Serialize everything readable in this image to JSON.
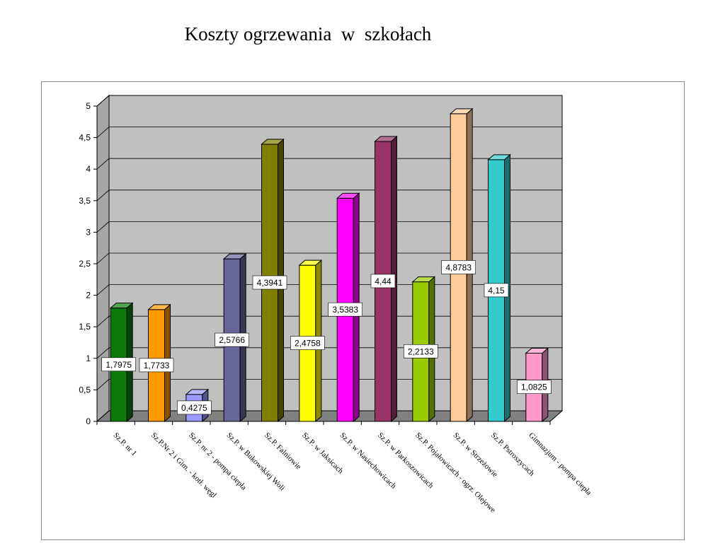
{
  "title": "Koszty ogrzewania  w  szkołach",
  "chart_data": {
    "type": "bar",
    "title": "Koszty ogrzewania  w  szkołach",
    "categories": [
      "Sz.P. nr 1",
      "Sz.P.Nr 2 i Gim. - kotł. węgl",
      "Sz.P. nr 2 - pompa ciepła",
      "Sz.P. w Bukowskiej Woli",
      "Sz.P. Falniowie",
      "Sz.P. w Jaksicach",
      "Sz.P. w Nasiechowicach",
      "Sz.P. w Parkoszowicach",
      "Sz.P. Pojałowicach - ogrz. Olejowe",
      "Sz.P. w Strzeżowie",
      "Sz.P. Pstroszycach",
      "Gimnazjum - pompa ciepła"
    ],
    "values": [
      1.7975,
      1.7733,
      0.4275,
      2.5766,
      4.3941,
      2.4758,
      3.5383,
      4.44,
      2.2133,
      4.8783,
      4.15,
      1.0825
    ],
    "data_labels": [
      "1,7975",
      "1,7733",
      "0,4275",
      "2,5766",
      "4,3941",
      "2,4758",
      "3,5383",
      "4,44",
      "2,2133",
      "4,8783",
      "4,15",
      "1,0825"
    ],
    "ylim": [
      0,
      5
    ],
    "yticks": [
      "0",
      "0,5",
      "1",
      "1,5",
      "2",
      "2,5",
      "3",
      "3,5",
      "4",
      "4,5",
      "5"
    ],
    "grid": true,
    "legend": "none",
    "colors": [
      "#0b7a0b",
      "#ff9900",
      "#9999ff",
      "#666699",
      "#808000",
      "#ffff00",
      "#ff00ff",
      "#993366",
      "#99cc00",
      "#ffcc99",
      "#33cccc",
      "#ff99cc"
    ],
    "wall_color": "#c0c0c0",
    "floor_color": "#808080"
  }
}
